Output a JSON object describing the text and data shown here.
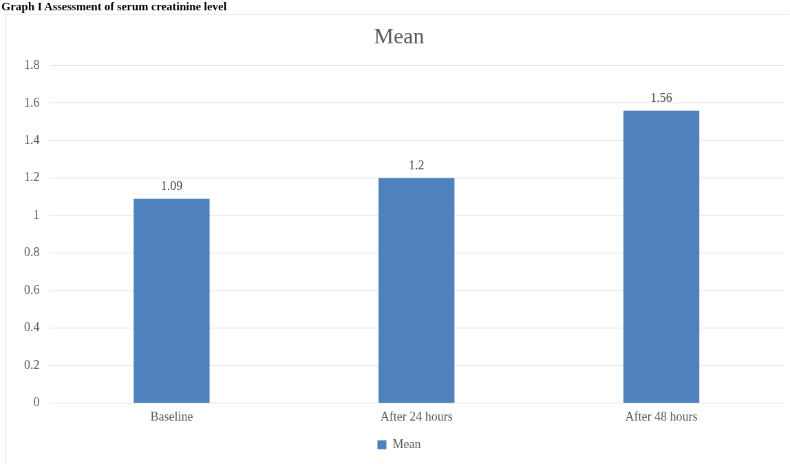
{
  "chart_data": {
    "type": "bar",
    "title": "Mean",
    "annotations": [
      "Graph I Assessment of serum creatinine level"
    ],
    "categories": [
      "Baseline",
      "After 24 hours",
      "After 48 hours"
    ],
    "series": [
      {
        "name": "Mean",
        "color": "#4f81bd",
        "values": [
          1.09,
          1.2,
          1.56
        ]
      }
    ],
    "ylim": [
      0,
      1.8
    ],
    "yticks": [
      0,
      0.2,
      0.4,
      0.6,
      0.8,
      1,
      1.2,
      1.4,
      1.6,
      1.8
    ],
    "grid": "y",
    "legend": "bottom",
    "data_labels": true
  }
}
